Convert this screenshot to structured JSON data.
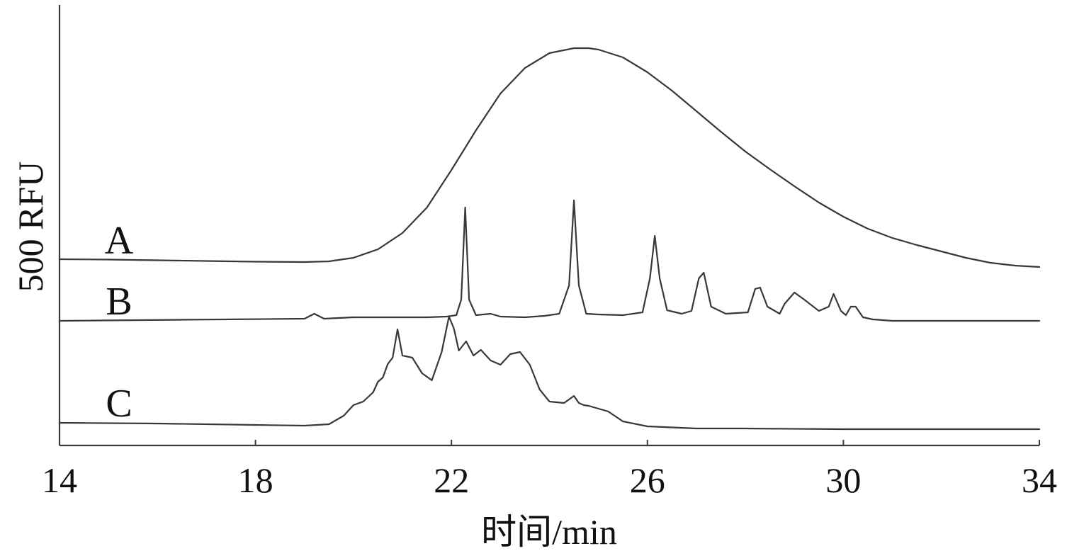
{
  "chart_data": {
    "type": "line",
    "title": "",
    "xlabel": "时间/min",
    "ylabel": "500 RFU",
    "xlim": [
      14,
      34
    ],
    "x_ticks": [
      "14",
      "18",
      "22",
      "26",
      "30",
      "34"
    ],
    "grid": false,
    "trace_color": "#3d3636",
    "series": [
      {
        "name": "A",
        "x": [
          14,
          15,
          16,
          17,
          18,
          19,
          19.5,
          20,
          20.5,
          21,
          21.5,
          22,
          22.5,
          23,
          23.5,
          24,
          24.5,
          24.8,
          25,
          25.5,
          26,
          26.5,
          27,
          27.5,
          28,
          28.5,
          29,
          29.5,
          30,
          30.5,
          31,
          31.5,
          32,
          32.5,
          33,
          33.5,
          34
        ],
        "y": [
          0,
          -0.5,
          -1.5,
          -2.5,
          -3.5,
          -4,
          -3,
          2,
          14,
          37,
          73,
          126,
          182,
          234,
          270,
          291,
          298,
          298,
          296,
          285,
          264,
          238,
          209,
          180,
          152,
          127,
          103,
          80,
          60,
          43,
          30,
          20,
          11,
          2,
          -5,
          -9,
          -11
        ]
      },
      {
        "name": "B",
        "x": [
          14,
          19,
          19.2,
          19.4,
          20,
          21,
          21.5,
          21.9,
          22.1,
          22.2,
          22.28,
          22.36,
          22.5,
          22.8,
          23,
          23.5,
          23.9,
          24.2,
          24.4,
          24.5,
          24.6,
          24.75,
          25,
          25.5,
          25.9,
          26.05,
          26.15,
          26.25,
          26.4,
          26.7,
          26.9,
          27.05,
          27.15,
          27.3,
          27.6,
          28.05,
          28.2,
          28.3,
          28.45,
          28.7,
          28.8,
          29.0,
          29.2,
          29.5,
          29.7,
          29.8,
          29.95,
          30.05,
          30.15,
          30.25,
          30.4,
          30.6,
          31,
          34
        ],
        "y": [
          0,
          3,
          10,
          3,
          5,
          5,
          5,
          6,
          8,
          30,
          160,
          30,
          8,
          10,
          6,
          5,
          7,
          10,
          50,
          170,
          50,
          10,
          9,
          8,
          12,
          60,
          120,
          60,
          15,
          10,
          14,
          60,
          68,
          20,
          10,
          12,
          45,
          47,
          20,
          10,
          24,
          40,
          30,
          14,
          20,
          38,
          14,
          8,
          20,
          20,
          5,
          2,
          0,
          0
        ]
      },
      {
        "name": "C",
        "x": [
          14,
          16,
          18,
          19,
          19.5,
          19.8,
          20,
          20.2,
          20.4,
          20.5,
          20.6,
          20.7,
          20.8,
          20.9,
          21.0,
          21.2,
          21.4,
          21.6,
          21.8,
          21.95,
          22.05,
          22.15,
          22.3,
          22.45,
          22.6,
          22.8,
          23.0,
          23.2,
          23.4,
          23.6,
          23.8,
          24.0,
          24.3,
          24.5,
          24.6,
          24.7,
          24.8,
          25.0,
          25.2,
          25.5,
          26,
          27,
          28,
          30,
          32,
          34
        ],
        "y": [
          0,
          -1,
          -3,
          -4,
          -2,
          10,
          25,
          30,
          43,
          58,
          64,
          83,
          92,
          132,
          95,
          92,
          70,
          60,
          100,
          150,
          133,
          102,
          115,
          95,
          103,
          88,
          82,
          97,
          100,
          82,
          47,
          30,
          28,
          38,
          28,
          25,
          24,
          20,
          16,
          2,
          -5,
          -8,
          -8,
          -9,
          -9,
          -9
        ]
      }
    ]
  }
}
